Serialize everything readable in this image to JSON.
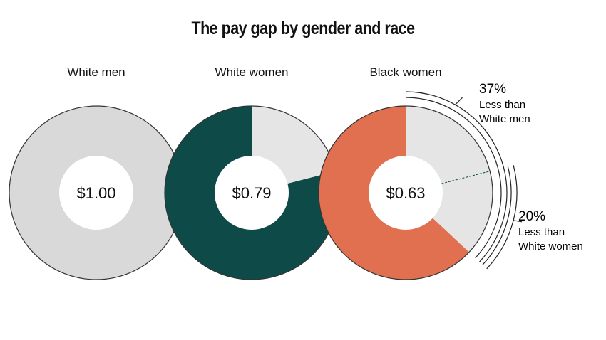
{
  "chart_data": {
    "type": "pie",
    "title": "The pay gap by gender and race",
    "series": [
      {
        "name": "White men",
        "value": 1.0,
        "value_label": "$1.00",
        "color": "#d9d9d9"
      },
      {
        "name": "White women",
        "value": 0.79,
        "value_label": "$0.79",
        "color": "#0e4a47"
      },
      {
        "name": "Black women",
        "value": 0.63,
        "value_label": "$0.63",
        "color": "#e07050"
      }
    ],
    "remainder_color": "#e5e5e5",
    "annotations": [
      {
        "percent": "37%",
        "line1": "Less than",
        "line2": "White men"
      },
      {
        "percent": "20%",
        "line1": "Less than",
        "line2": "White women"
      }
    ]
  }
}
